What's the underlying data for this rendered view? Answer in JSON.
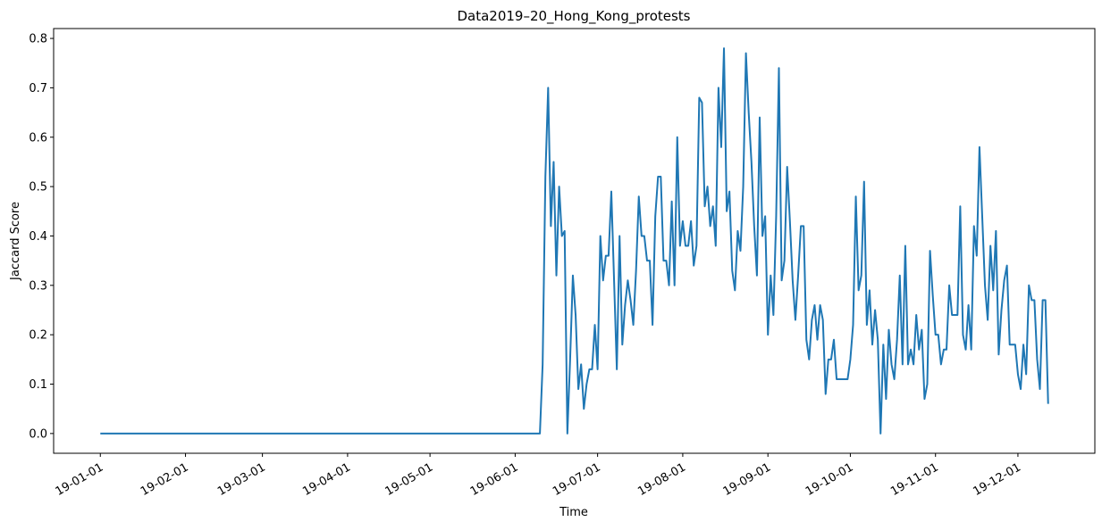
{
  "chart_data": {
    "type": "line",
    "title": "Data2019–20_Hong_Kong_protests",
    "xlabel": "Time",
    "ylabel": "Jaccard Score",
    "color": "#1f77b4",
    "x": [
      "19-01-01",
      "19-06-10",
      "19-06-11",
      "19-06-12",
      "19-06-13",
      "19-06-14",
      "19-06-15",
      "19-06-16",
      "19-06-17",
      "19-06-18",
      "19-06-19",
      "19-06-20",
      "19-06-21",
      "19-06-22",
      "19-06-23",
      "19-06-24",
      "19-06-25",
      "19-06-26",
      "19-06-27",
      "19-06-28",
      "19-06-29",
      "19-06-30",
      "19-07-01",
      "19-07-02",
      "19-07-03",
      "19-07-04",
      "19-07-05",
      "19-07-06",
      "19-07-07",
      "19-07-08",
      "19-07-09",
      "19-07-10",
      "19-07-11",
      "19-07-12",
      "19-07-13",
      "19-07-14",
      "19-07-15",
      "19-07-16",
      "19-07-17",
      "19-07-18",
      "19-07-19",
      "19-07-20",
      "19-07-21",
      "19-07-22",
      "19-07-23",
      "19-07-24",
      "19-07-25",
      "19-07-26",
      "19-07-27",
      "19-07-28",
      "19-07-29",
      "19-07-30",
      "19-07-31",
      "19-08-01",
      "19-08-02",
      "19-08-03",
      "19-08-04",
      "19-08-05",
      "19-08-06",
      "19-08-07",
      "19-08-08",
      "19-08-09",
      "19-08-10",
      "19-08-11",
      "19-08-12",
      "19-08-13",
      "19-08-14",
      "19-08-15",
      "19-08-16",
      "19-08-17",
      "19-08-18",
      "19-08-19",
      "19-08-20",
      "19-08-21",
      "19-08-22",
      "19-08-23",
      "19-08-24",
      "19-08-25",
      "19-08-26",
      "19-08-27",
      "19-08-28",
      "19-08-29",
      "19-08-30",
      "19-08-31",
      "19-09-01",
      "19-09-02",
      "19-09-03",
      "19-09-04",
      "19-09-05",
      "19-09-06",
      "19-09-07",
      "19-09-08",
      "19-09-09",
      "19-09-10",
      "19-09-11",
      "19-09-12",
      "19-09-13",
      "19-09-14",
      "19-09-15",
      "19-09-16",
      "19-09-17",
      "19-09-18",
      "19-09-19",
      "19-09-20",
      "19-09-21",
      "19-09-22",
      "19-09-23",
      "19-09-24",
      "19-09-25",
      "19-09-26",
      "19-09-27",
      "19-09-28",
      "19-09-29",
      "19-09-30",
      "19-10-01",
      "19-10-02",
      "19-10-03",
      "19-10-04",
      "19-10-05",
      "19-10-06",
      "19-10-07",
      "19-10-08",
      "19-10-09",
      "19-10-10",
      "19-10-11",
      "19-10-12",
      "19-10-13",
      "19-10-14",
      "19-10-15",
      "19-10-16",
      "19-10-17",
      "19-10-18",
      "19-10-19",
      "19-10-20",
      "19-10-21",
      "19-10-22",
      "19-10-23",
      "19-10-24",
      "19-10-25",
      "19-10-26",
      "19-10-27",
      "19-10-28",
      "19-10-29",
      "19-10-30",
      "19-10-31",
      "19-11-01",
      "19-11-02",
      "19-11-03",
      "19-11-04",
      "19-11-05",
      "19-11-06",
      "19-11-07",
      "19-11-08",
      "19-11-09",
      "19-11-10",
      "19-11-11",
      "19-11-12",
      "19-11-13",
      "19-11-14",
      "19-11-15",
      "19-11-16",
      "19-11-17",
      "19-11-18",
      "19-11-19",
      "19-11-20",
      "19-11-21",
      "19-11-22",
      "19-11-23",
      "19-11-24",
      "19-11-25",
      "19-11-26",
      "19-11-27",
      "19-11-28",
      "19-11-29",
      "19-11-30",
      "19-12-01",
      "19-12-02",
      "19-12-03",
      "19-12-04",
      "19-12-05",
      "19-12-06",
      "19-12-07",
      "19-12-08",
      "19-12-09",
      "19-12-10",
      "19-12-11",
      "19-12-12"
    ],
    "values": [
      0,
      0,
      0.14,
      0.52,
      0.7,
      0.42,
      0.55,
      0.32,
      0.5,
      0.4,
      0.41,
      0.0,
      0.15,
      0.32,
      0.24,
      0.09,
      0.14,
      0.05,
      0.1,
      0.13,
      0.13,
      0.22,
      0.13,
      0.4,
      0.31,
      0.36,
      0.36,
      0.49,
      0.31,
      0.13,
      0.4,
      0.18,
      0.26,
      0.31,
      0.27,
      0.22,
      0.33,
      0.48,
      0.4,
      0.4,
      0.35,
      0.35,
      0.22,
      0.44,
      0.52,
      0.52,
      0.35,
      0.35,
      0.3,
      0.47,
      0.3,
      0.6,
      0.38,
      0.43,
      0.38,
      0.38,
      0.43,
      0.34,
      0.38,
      0.68,
      0.67,
      0.46,
      0.5,
      0.42,
      0.46,
      0.38,
      0.7,
      0.58,
      0.78,
      0.45,
      0.49,
      0.33,
      0.29,
      0.41,
      0.37,
      0.5,
      0.77,
      0.65,
      0.55,
      0.42,
      0.32,
      0.64,
      0.4,
      0.44,
      0.2,
      0.32,
      0.24,
      0.44,
      0.74,
      0.31,
      0.35,
      0.54,
      0.43,
      0.31,
      0.23,
      0.32,
      0.42,
      0.42,
      0.19,
      0.15,
      0.23,
      0.26,
      0.19,
      0.26,
      0.23,
      0.08,
      0.15,
      0.15,
      0.19,
      0.11,
      0.11,
      0.11,
      0.11,
      0.11,
      0.15,
      0.22,
      0.48,
      0.29,
      0.32,
      0.51,
      0.22,
      0.29,
      0.18,
      0.25,
      0.19,
      0.0,
      0.18,
      0.07,
      0.21,
      0.14,
      0.11,
      0.19,
      0.32,
      0.14,
      0.38,
      0.14,
      0.17,
      0.14,
      0.24,
      0.17,
      0.21,
      0.07,
      0.1,
      0.37,
      0.28,
      0.2,
      0.2,
      0.14,
      0.17,
      0.17,
      0.3,
      0.24,
      0.24,
      0.24,
      0.46,
      0.2,
      0.17,
      0.26,
      0.17,
      0.42,
      0.36,
      0.58,
      0.44,
      0.3,
      0.23,
      0.38,
      0.29,
      0.41,
      0.16,
      0.25,
      0.31,
      0.34,
      0.18,
      0.18,
      0.18,
      0.12,
      0.09,
      0.18,
      0.12,
      0.3,
      0.27,
      0.27,
      0.15,
      0.09,
      0.27,
      0.27,
      0.06
    ],
    "xlim": [
      "18-12-15",
      "19-12-29"
    ],
    "xticks": [
      "19-01-01",
      "19-02-01",
      "19-03-01",
      "19-04-01",
      "19-05-01",
      "19-06-01",
      "19-07-01",
      "19-08-01",
      "19-09-01",
      "19-10-01",
      "19-11-01",
      "19-12-01"
    ],
    "ylim": [
      -0.04,
      0.82
    ],
    "yticks": [
      {
        "value": 0,
        "label": "0.0"
      },
      {
        "value": 0.1,
        "label": "0.1"
      },
      {
        "value": 0.2,
        "label": "0.2"
      },
      {
        "value": 0.3,
        "label": "0.3"
      },
      {
        "value": 0.4,
        "label": "0.4"
      },
      {
        "value": 0.5,
        "label": "0.5"
      },
      {
        "value": 0.6,
        "label": "0.6"
      },
      {
        "value": 0.7,
        "label": "0.7"
      },
      {
        "value": 0.8,
        "label": "0.8"
      }
    ],
    "grid": false
  }
}
